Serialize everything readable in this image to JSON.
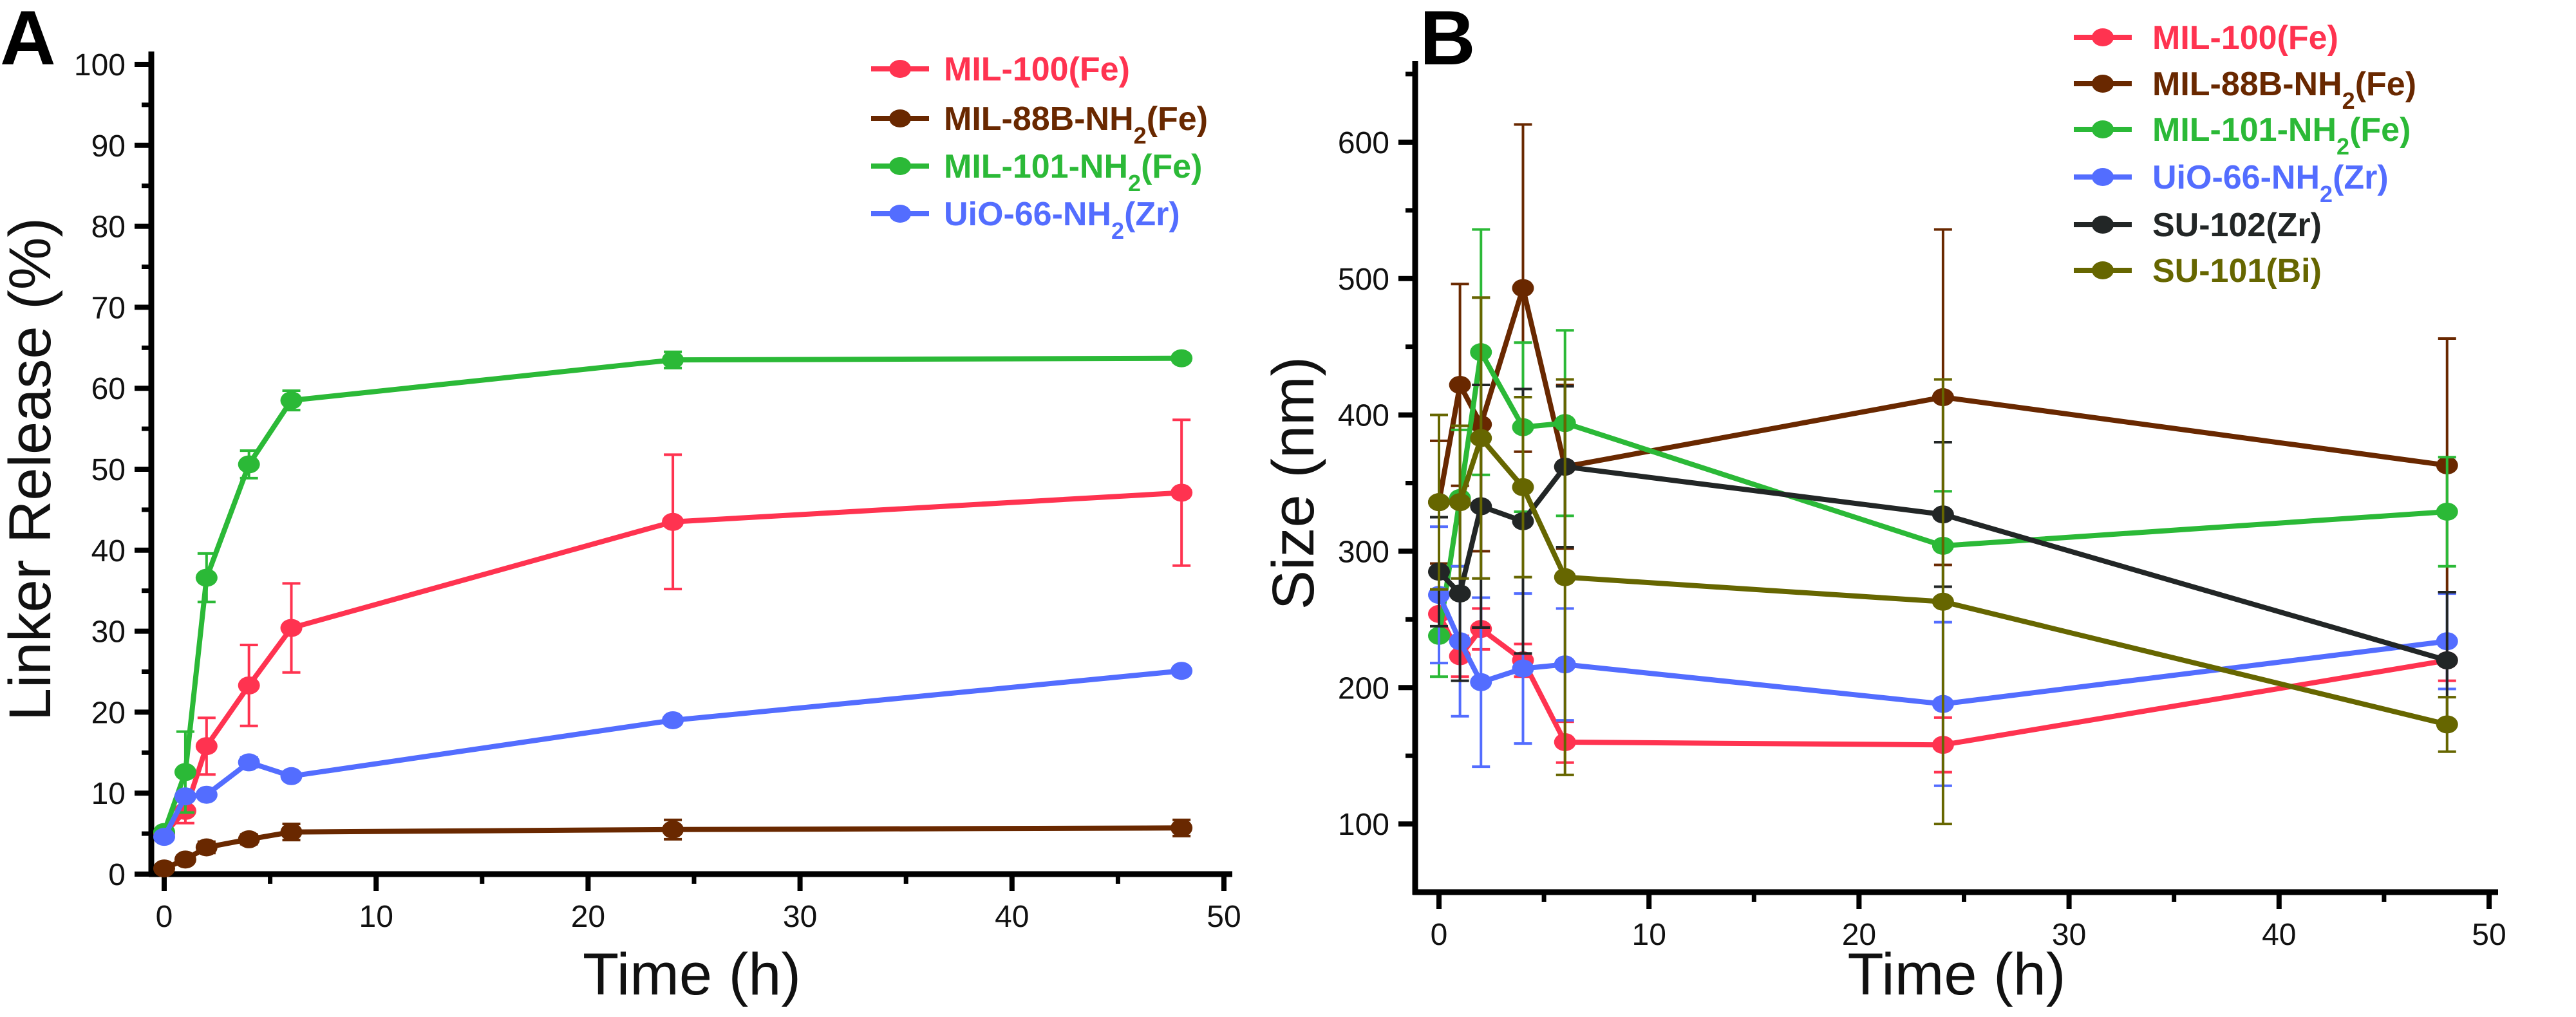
{
  "chart_data": [
    {
      "panel_label": "A",
      "type": "line",
      "xlabel": "Time (h)",
      "ylabel": "Linker Release (%)",
      "xlim": [
        -1,
        50
      ],
      "ylim": [
        0,
        100
      ],
      "xticks": [
        0,
        10,
        20,
        30,
        40,
        50
      ],
      "yticks": [
        0,
        10,
        20,
        30,
        40,
        50,
        60,
        70,
        80,
        90,
        100
      ],
      "legend_position": "top-right",
      "x": [
        0,
        1,
        2,
        4,
        6,
        24,
        48
      ],
      "series": [
        {
          "name": "MIL-100(Fe)",
          "color": "#ff3350",
          "values": [
            5.0,
            7.8,
            15.8,
            23.3,
            30.4,
            43.5,
            47.1
          ],
          "errors": [
            0.5,
            1.5,
            3.5,
            5.0,
            5.5,
            8.3,
            9.0
          ]
        },
        {
          "name": "MIL-88B-NH2(Fe)",
          "color": "#692800",
          "values": [
            0.7,
            1.8,
            3.3,
            4.3,
            5.2,
            5.5,
            5.7
          ],
          "errors": [
            0.4,
            0.5,
            0.7,
            0.6,
            1.0,
            1.2,
            1.0
          ]
        },
        {
          "name": "MIL-101-NH2(Fe)",
          "color": "#2bb937",
          "values": [
            5.2,
            12.6,
            36.6,
            50.6,
            58.5,
            63.5,
            63.7
          ],
          "errors": [
            0.5,
            5.0,
            3.0,
            1.7,
            1.2,
            1.0,
            0.5
          ]
        },
        {
          "name": "UiO-66-NH2(Zr)",
          "color": "#536dff",
          "values": [
            4.6,
            9.6,
            9.8,
            13.8,
            12.1,
            19.0,
            25.1
          ],
          "errors": [
            0.5,
            0.5,
            0.4,
            0.6,
            0.4,
            0.4,
            0.4
          ]
        }
      ]
    },
    {
      "panel_label": "B",
      "type": "line",
      "xlabel": "Time (h)",
      "ylabel": "Size (nm)",
      "xlim": [
        -1,
        50
      ],
      "ylim": [
        50,
        650
      ],
      "xticks": [
        0,
        10,
        20,
        30,
        40,
        50
      ],
      "yticks": [
        100,
        200,
        300,
        400,
        500,
        600
      ],
      "legend_position": "top-right",
      "x": [
        0,
        1,
        2,
        4,
        6,
        24,
        48
      ],
      "series": [
        {
          "name": "MIL-100(Fe)",
          "color": "#ff3350",
          "values": [
            254,
            223,
            243,
            220,
            160,
            158,
            220
          ],
          "errors": [
            15,
            15,
            15,
            12,
            15,
            20,
            15
          ]
        },
        {
          "name": "MIL-88B-NH2(Fe)",
          "color": "#692800",
          "values": [
            336,
            422,
            393,
            493,
            362,
            413,
            363
          ],
          "errors": [
            45,
            74,
            93,
            120,
            60,
            123,
            93
          ]
        },
        {
          "name": "MIL-101-NH2(Fe)",
          "color": "#2bb937",
          "values": [
            238,
            339,
            446,
            391,
            394,
            304,
            329
          ],
          "errors": [
            30,
            50,
            90,
            62,
            68,
            40,
            40
          ]
        },
        {
          "name": "UiO-66-NH2(Zr)",
          "color": "#536dff",
          "values": [
            268,
            234,
            204,
            214,
            217,
            188,
            234
          ],
          "errors": [
            50,
            55,
            62,
            55,
            41,
            60,
            35
          ]
        },
        {
          "name": "SU-102(Zr)",
          "color": "#222626",
          "values": [
            285,
            269,
            333,
            322,
            362,
            327,
            220
          ],
          "errors": [
            40,
            64,
            89,
            97,
            59,
            53,
            50
          ]
        },
        {
          "name": "SU-101(Bi)",
          "color": "#666600",
          "values": [
            336,
            336,
            383,
            347,
            281,
            263,
            173
          ],
          "errors": [
            64,
            56,
            103,
            66,
            145,
            163,
            20
          ]
        }
      ]
    }
  ]
}
